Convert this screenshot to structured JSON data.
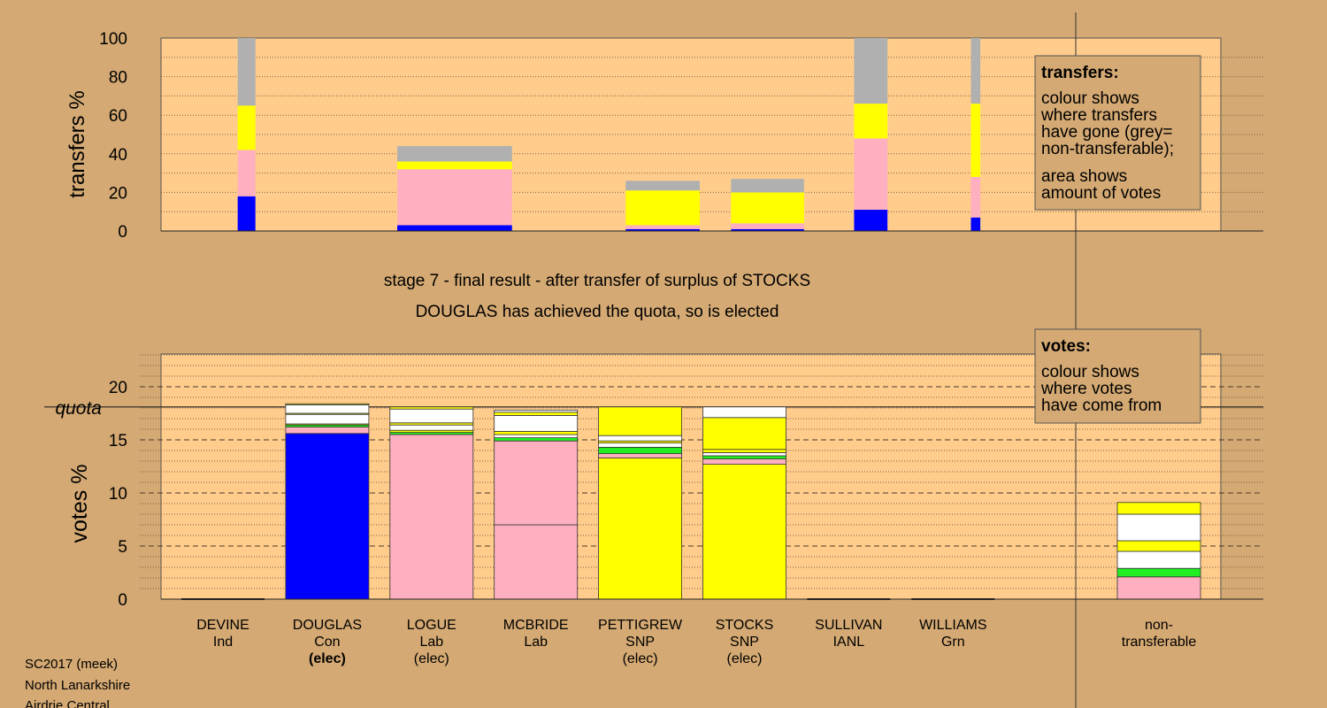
{
  "colors": {
    "background": "#d4a973",
    "plot_bg": "#ffcc8c",
    "Con": "#0000ff",
    "Lab": "#ffb0c0",
    "SNP": "#ffff00",
    "Grn": "#22ee22",
    "Other": "#ffffff",
    "Nontransferable": "#b0b0b0"
  },
  "info": {
    "line1": "SC2017 (meek)",
    "line2": "North Lanarkshire",
    "line3": "Airdrie Central"
  },
  "stage": {
    "line1": "stage 7 - final result - after transfer of surplus of STOCKS",
    "line2": "DOUGLAS has achieved the quota, so is elected"
  },
  "legend_transfers": {
    "title": "transfers:",
    "lines": [
      "colour shows",
      "where transfers",
      "have gone (grey=",
      "non-transferable);",
      "area shows",
      "amount of votes"
    ]
  },
  "legend_votes": {
    "title": "votes:",
    "lines": [
      "colour shows",
      "where votes",
      "have come from"
    ]
  },
  "quota_label": "quota",
  "chart_data": [
    {
      "type": "bar",
      "title": "",
      "ylabel": "transfers %",
      "ylim": [
        0,
        100
      ],
      "yticks": [
        0,
        20,
        40,
        60,
        80,
        100
      ],
      "grid": "dotted",
      "bars": [
        {
          "x_from": 0.54,
          "x_to": 0.71,
          "segments": [
            {
              "party": "Con",
              "value": 18
            },
            {
              "party": "Lab",
              "value": 24
            },
            {
              "party": "SNP",
              "value": 23
            },
            {
              "party": "Nontransferable",
              "value": 35
            }
          ]
        },
        {
          "x_from": 2.07,
          "x_to": 3.17,
          "segments": [
            {
              "party": "Con",
              "value": 3
            },
            {
              "party": "Lab",
              "value": 29
            },
            {
              "party": "SNP",
              "value": 4
            },
            {
              "party": "Nontransferable",
              "value": 8
            }
          ]
        },
        {
          "x_from": 4.26,
          "x_to": 4.97,
          "segments": [
            {
              "party": "Con",
              "value": 1
            },
            {
              "party": "Lab",
              "value": 2
            },
            {
              "party": "SNP",
              "value": 18
            },
            {
              "party": "Nontransferable",
              "value": 5
            }
          ]
        },
        {
          "x_from": 5.27,
          "x_to": 5.97,
          "segments": [
            {
              "party": "Con",
              "value": 1
            },
            {
              "party": "Lab",
              "value": 3
            },
            {
              "party": "SNP",
              "value": 16
            },
            {
              "party": "Nontransferable",
              "value": 7
            }
          ]
        },
        {
          "x_from": 6.45,
          "x_to": 6.77,
          "segments": [
            {
              "party": "Con",
              "value": 11
            },
            {
              "party": "Lab",
              "value": 37
            },
            {
              "party": "SNP",
              "value": 18
            },
            {
              "party": "Nontransferable",
              "value": 34
            }
          ]
        },
        {
          "x_from": 7.57,
          "x_to": 7.66,
          "segments": [
            {
              "party": "Con",
              "value": 7
            },
            {
              "party": "Lab",
              "value": 21
            },
            {
              "party": "SNP",
              "value": 38
            },
            {
              "party": "Nontransferable",
              "value": 34
            }
          ]
        }
      ]
    },
    {
      "type": "bar",
      "title": "",
      "ylabel": "votes %",
      "ylim": [
        0,
        20
      ],
      "yticks": [
        0,
        5,
        10,
        15,
        20
      ],
      "quota": 18.1,
      "grid": "dashed",
      "categories": [
        {
          "name": "DEVINE",
          "party": "Ind",
          "note": ""
        },
        {
          "name": "DOUGLAS",
          "party": "Con",
          "note": "(elec)"
        },
        {
          "name": "LOGUE",
          "party": "Lab",
          "note": "(elec)"
        },
        {
          "name": "MCBRIDE",
          "party": "Lab",
          "note": ""
        },
        {
          "name": "PETTIGREW",
          "party": "SNP",
          "note": "(elec)"
        },
        {
          "name": "STOCKS",
          "party": "SNP",
          "note": "(elec)"
        },
        {
          "name": "SULLIVAN",
          "party": "IANL",
          "note": ""
        },
        {
          "name": "WILLIAMS",
          "party": "Grn",
          "note": ""
        },
        {
          "name": "non-",
          "party": "transferable",
          "note": ""
        }
      ],
      "bars": [
        {
          "segments": []
        },
        {
          "segments": [
            {
              "party": "Con",
              "value": 15.6
            },
            {
              "party": "Lab",
              "value": 0.6
            },
            {
              "party": "Grn",
              "value": 0.2
            },
            {
              "party": "SNP",
              "value": 0.1
            },
            {
              "party": "Other",
              "value": 0.9
            },
            {
              "party": "SNP",
              "value": 0.1
            },
            {
              "party": "Other",
              "value": 0.8
            },
            {
              "party": "SNP",
              "value": 0.1
            }
          ]
        },
        {
          "segments": [
            {
              "party": "Lab",
              "value": 15.5
            },
            {
              "party": "Grn",
              "value": 0.2
            },
            {
              "party": "SNP",
              "value": 0.2
            },
            {
              "party": "Other",
              "value": 0.5
            },
            {
              "party": "SNP",
              "value": 0.2
            },
            {
              "party": "Other",
              "value": 1.3
            },
            {
              "party": "SNP",
              "value": 0.2
            }
          ]
        },
        {
          "segments": [
            {
              "party": "Lab",
              "value": 7.0
            },
            {
              "party": "Lab",
              "value": 7.9
            },
            {
              "party": "Grn",
              "value": 0.3
            },
            {
              "party": "Other",
              "value": 0.3
            },
            {
              "party": "SNP",
              "value": 0.3
            },
            {
              "party": "Other",
              "value": 1.5
            },
            {
              "party": "SNP",
              "value": 0.3
            },
            {
              "party": "Other",
              "value": 0.2
            }
          ]
        },
        {
          "segments": [
            {
              "party": "SNP",
              "value": 13.3
            },
            {
              "party": "Lab",
              "value": 0.4
            },
            {
              "party": "Grn",
              "value": 0.6
            },
            {
              "party": "Other",
              "value": 0.4
            },
            {
              "party": "SNP",
              "value": 0.2
            },
            {
              "party": "Other",
              "value": 0.5
            },
            {
              "party": "SNP",
              "value": 2.7
            }
          ]
        },
        {
          "segments": [
            {
              "party": "SNP",
              "value": 12.7
            },
            {
              "party": "Lab",
              "value": 0.5
            },
            {
              "party": "Grn",
              "value": 0.3
            },
            {
              "party": "Other",
              "value": 0.3
            },
            {
              "party": "SNP",
              "value": 0.3
            },
            {
              "party": "SNP",
              "value": 3.0
            },
            {
              "party": "Other",
              "value": 1.0
            }
          ]
        },
        {
          "segments": []
        },
        {
          "segments": []
        },
        {
          "segments": [
            {
              "party": "Lab",
              "value": 2.1
            },
            {
              "party": "Grn",
              "value": 0.8
            },
            {
              "party": "Other",
              "value": 1.6
            },
            {
              "party": "SNP",
              "value": 1.0
            },
            {
              "party": "Other",
              "value": 2.5
            },
            {
              "party": "SNP",
              "value": 1.1
            }
          ]
        }
      ]
    }
  ]
}
